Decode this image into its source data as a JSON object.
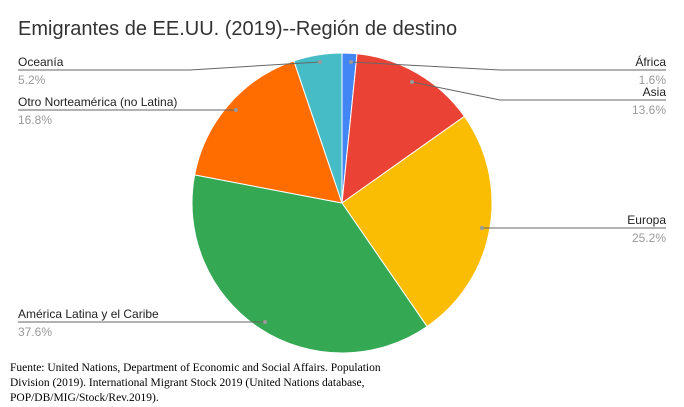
{
  "chart_data": {
    "type": "pie",
    "title": "Emigrantes de EE.UU. (2019)--Región de destino",
    "start_angle": "12 o'clock, clockwise",
    "slices": [
      {
        "label": "África",
        "value": 1.6,
        "display": "1.6%",
        "color": "#4285f4"
      },
      {
        "label": "Asia",
        "value": 13.6,
        "display": "13.6%",
        "color": "#ea4335"
      },
      {
        "label": "Europa",
        "value": 25.2,
        "display": "25.2%",
        "color": "#fbbc04"
      },
      {
        "label": "América Latina y el Caribe",
        "value": 37.6,
        "display": "37.6%",
        "color": "#34a853"
      },
      {
        "label": "Otro Norteamérica (no Latina)",
        "value": 16.8,
        "display": "16.8%",
        "color": "#ff6d01"
      },
      {
        "label": "Oceanía",
        "value": 5.2,
        "display": "5.2%",
        "color": "#46bdc6"
      }
    ]
  },
  "source": "Fuente: United Nations, Department of Economic and Social Affairs. Population Division (2019). International Migrant Stock 2019 (United Nations database, POP/DB/MIG/Stock/Rev.2019)."
}
